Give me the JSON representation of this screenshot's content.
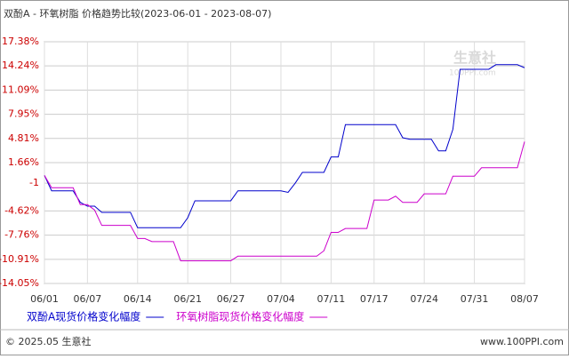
{
  "chart_data": {
    "type": "line",
    "title": "双酚A - 环氧树脂 价格趋势比较(2023-06-01 - 2023-08-07)",
    "categories": [
      "06/01",
      null,
      null,
      null,
      null,
      null,
      "06/07",
      null,
      null,
      null,
      null,
      null,
      null,
      "06/14",
      null,
      null,
      null,
      null,
      null,
      null,
      "06/21",
      null,
      null,
      null,
      null,
      null,
      "06/27",
      null,
      null,
      null,
      null,
      null,
      null,
      "07/04",
      null,
      null,
      null,
      null,
      null,
      null,
      "07/11",
      null,
      null,
      null,
      null,
      null,
      "07/17",
      null,
      null,
      null,
      null,
      null,
      null,
      "07/24",
      null,
      null,
      null,
      null,
      null,
      null,
      "07/31",
      null,
      null,
      null,
      null,
      null,
      null,
      "08/07"
    ],
    "series": [
      {
        "name": "双酚A现货价格变化幅度",
        "color": "#0000cc",
        "values": [
          0,
          -2,
          -2,
          -2,
          -2,
          -3.5,
          -4,
          -4,
          -4.8,
          -4.8,
          -4.8,
          -4.8,
          -4.8,
          -6.8,
          -6.8,
          -6.8,
          -6.8,
          -6.8,
          -6.8,
          -6.8,
          -5.5,
          -3.3,
          -3.3,
          -3.3,
          -3.3,
          -3.3,
          -3.3,
          -2,
          -2,
          -2,
          -2,
          -2,
          -2,
          -2,
          -2.2,
          -1,
          0.4,
          0.4,
          0.4,
          0.4,
          2.4,
          2.4,
          6.6,
          6.6,
          6.6,
          6.6,
          6.6,
          6.6,
          6.6,
          6.6,
          4.9,
          4.7,
          4.7,
          4.7,
          4.7,
          3.2,
          3.2,
          6,
          13.8,
          13.8,
          13.8,
          13.8,
          13.8,
          14.4,
          14.4,
          14.4,
          14.4,
          14
        ]
      },
      {
        "name": "环氧树脂现货价格变化幅度",
        "color": "#cc00cc",
        "values": [
          0,
          -1.6,
          -1.6,
          -1.6,
          -1.6,
          -3.8,
          -3.8,
          -4.5,
          -6.5,
          -6.5,
          -6.5,
          -6.5,
          -6.5,
          -8.2,
          -8.2,
          -8.6,
          -8.6,
          -8.6,
          -8.6,
          -11.1,
          -11.1,
          -11.1,
          -11.1,
          -11.1,
          -11.1,
          -11.1,
          -11.1,
          -10.5,
          -10.5,
          -10.5,
          -10.5,
          -10.5,
          -10.5,
          -10.5,
          -10.5,
          -10.5,
          -10.5,
          -10.5,
          -10.5,
          -9.8,
          -7.4,
          -7.4,
          -6.9,
          -6.9,
          -6.9,
          -6.9,
          -3.2,
          -3.2,
          -3.2,
          -2.7,
          -3.5,
          -3.5,
          -3.5,
          -2.4,
          -2.4,
          -2.4,
          -2.4,
          -0.1,
          -0.1,
          -0.1,
          -0.1,
          1,
          1,
          1,
          1,
          1,
          1,
          4.4
        ]
      }
    ],
    "ylim": [
      -14.05,
      17.38
    ],
    "yticks": [
      {
        "value": 17.38,
        "label": "17.38%"
      },
      {
        "value": 14.24,
        "label": "14.24%"
      },
      {
        "value": 11.09,
        "label": "11.09%"
      },
      {
        "value": 7.95,
        "label": "7.95%"
      },
      {
        "value": 4.81,
        "label": "4.81%"
      },
      {
        "value": 1.66,
        "label": "1.66%"
      },
      -1,
      {
        "value": -4.62,
        "label": "-4.62%"
      },
      {
        "value": -7.76,
        "label": "-7.76%"
      },
      {
        "value": -10.91,
        "label": "-10.91%"
      },
      {
        "value": -14.05,
        "label": "-14.05%"
      }
    ],
    "grid": true,
    "watermark": "生意社",
    "watermark_sub": "100PPI.com",
    "footer_left": "© 2025.05 生意社",
    "footer_right": "www.100PPI.com"
  }
}
